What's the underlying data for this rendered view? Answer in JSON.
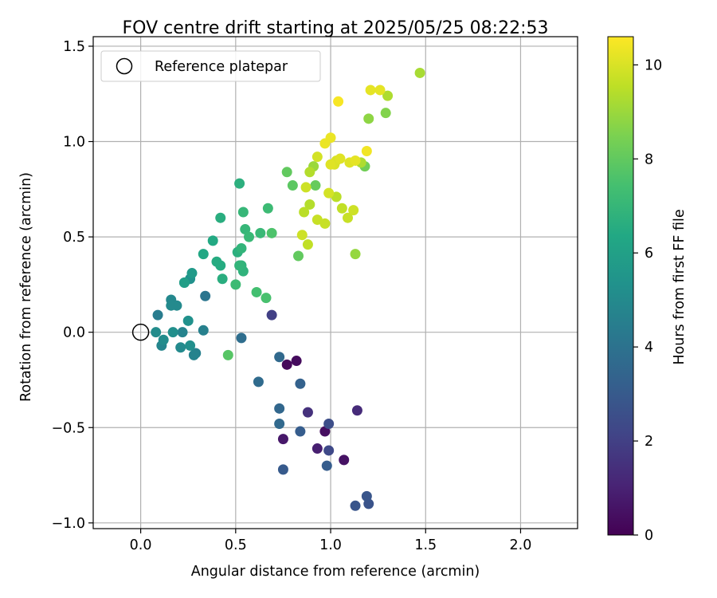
{
  "chart_data": {
    "type": "scatter",
    "title": "FOV centre drift starting at 2025/05/25 08:22:53",
    "xlabel": "Angular distance from reference (arcmin)",
    "ylabel": "Rotation from reference (arcmin)",
    "xlim": [
      -0.25,
      2.3
    ],
    "ylim": [
      -1.03,
      1.55
    ],
    "xticks": [
      0.0,
      0.5,
      1.0,
      1.5,
      2.0
    ],
    "xtick_labels": [
      "0.0",
      "0.5",
      "1.0",
      "1.5",
      "2.0"
    ],
    "yticks": [
      -1.0,
      -0.5,
      0.0,
      0.5,
      1.0,
      1.5
    ],
    "ytick_labels": [
      "−1.0",
      "−0.5",
      "0.0",
      "0.5",
      "1.0",
      "1.5"
    ],
    "grid": true,
    "legend": {
      "placement": "upper-left",
      "entries": [
        "Reference platepar"
      ]
    },
    "reference_point": {
      "x": 0.0,
      "y": 0.0
    },
    "colorbar": {
      "label": "Hours from first FF file",
      "colormap": "viridis",
      "range": [
        0,
        10.6
      ],
      "ticks": [
        0,
        2,
        4,
        6,
        8,
        10
      ],
      "tick_labels": [
        "0",
        "2",
        "4",
        "6",
        "8",
        "10"
      ]
    },
    "points": [
      {
        "x": 0.77,
        "y": -0.17,
        "h": 0.2
      },
      {
        "x": 0.82,
        "y": -0.15,
        "h": 0.3
      },
      {
        "x": 0.97,
        "y": -0.52,
        "h": 0.4
      },
      {
        "x": 1.07,
        "y": -0.67,
        "h": 0.5
      },
      {
        "x": 0.75,
        "y": -0.56,
        "h": 0.7
      },
      {
        "x": 0.93,
        "y": -0.61,
        "h": 0.9
      },
      {
        "x": 1.14,
        "y": -0.41,
        "h": 1.3
      },
      {
        "x": 0.88,
        "y": -0.42,
        "h": 1.5
      },
      {
        "x": 0.69,
        "y": 0.09,
        "h": 2.0
      },
      {
        "x": 0.99,
        "y": -0.62,
        "h": 2.3
      },
      {
        "x": 0.99,
        "y": -0.48,
        "h": 2.5
      },
      {
        "x": 1.2,
        "y": -0.9,
        "h": 2.7
      },
      {
        "x": 1.13,
        "y": -0.91,
        "h": 2.8
      },
      {
        "x": 1.19,
        "y": -0.86,
        "h": 2.8
      },
      {
        "x": 0.75,
        "y": -0.72,
        "h": 3.0
      },
      {
        "x": 0.84,
        "y": -0.52,
        "h": 3.1
      },
      {
        "x": 0.98,
        "y": -0.7,
        "h": 3.1
      },
      {
        "x": 0.84,
        "y": -0.27,
        "h": 3.3
      },
      {
        "x": 0.73,
        "y": -0.4,
        "h": 3.5
      },
      {
        "x": 0.73,
        "y": -0.48,
        "h": 3.6
      },
      {
        "x": 0.73,
        "y": -0.13,
        "h": 3.6
      },
      {
        "x": 0.62,
        "y": -0.26,
        "h": 3.7
      },
      {
        "x": 0.53,
        "y": -0.03,
        "h": 3.8
      },
      {
        "x": 0.34,
        "y": 0.19,
        "h": 4.1
      },
      {
        "x": 0.09,
        "y": 0.09,
        "h": 4.4
      },
      {
        "x": 0.33,
        "y": 0.01,
        "h": 4.6
      },
      {
        "x": 0.29,
        "y": -0.11,
        "h": 4.6
      },
      {
        "x": 0.28,
        "y": -0.12,
        "h": 4.7
      },
      {
        "x": 0.22,
        "y": 0.0,
        "h": 4.7
      },
      {
        "x": 0.11,
        "y": -0.07,
        "h": 4.8
      },
      {
        "x": 0.16,
        "y": 0.17,
        "h": 4.9
      },
      {
        "x": 0.19,
        "y": 0.14,
        "h": 5.0
      },
      {
        "x": 0.21,
        "y": -0.08,
        "h": 5.0
      },
      {
        "x": 0.16,
        "y": 0.14,
        "h": 5.0
      },
      {
        "x": 0.08,
        "y": 0.0,
        "h": 5.1
      },
      {
        "x": 0.12,
        "y": -0.04,
        "h": 5.1
      },
      {
        "x": 0.17,
        "y": 0.0,
        "h": 5.2
      },
      {
        "x": 0.26,
        "y": -0.07,
        "h": 5.2
      },
      {
        "x": 0.25,
        "y": 0.06,
        "h": 5.3
      },
      {
        "x": 0.26,
        "y": 0.28,
        "h": 5.3
      },
      {
        "x": 0.23,
        "y": 0.26,
        "h": 5.5
      },
      {
        "x": 0.27,
        "y": 0.31,
        "h": 5.7
      },
      {
        "x": 0.23,
        "y": 0.26,
        "h": 5.9
      },
      {
        "x": 0.33,
        "y": 0.41,
        "h": 6.3
      },
      {
        "x": 0.38,
        "y": 0.48,
        "h": 6.4
      },
      {
        "x": 0.42,
        "y": 0.35,
        "h": 6.5
      },
      {
        "x": 0.4,
        "y": 0.37,
        "h": 6.5
      },
      {
        "x": 0.43,
        "y": 0.28,
        "h": 6.6
      },
      {
        "x": 0.42,
        "y": 0.6,
        "h": 6.6
      },
      {
        "x": 0.52,
        "y": 0.78,
        "h": 6.7
      },
      {
        "x": 0.51,
        "y": 0.42,
        "h": 6.7
      },
      {
        "x": 0.53,
        "y": 0.35,
        "h": 6.8
      },
      {
        "x": 0.54,
        "y": 0.32,
        "h": 6.8
      },
      {
        "x": 0.52,
        "y": 0.35,
        "h": 6.9
      },
      {
        "x": 0.53,
        "y": 0.44,
        "h": 6.9
      },
      {
        "x": 0.54,
        "y": 0.63,
        "h": 7.0
      },
      {
        "x": 0.55,
        "y": 0.54,
        "h": 7.0
      },
      {
        "x": 0.57,
        "y": 0.5,
        "h": 7.1
      },
      {
        "x": 0.63,
        "y": 0.52,
        "h": 7.1
      },
      {
        "x": 0.5,
        "y": 0.25,
        "h": 7.2
      },
      {
        "x": 0.67,
        "y": 0.65,
        "h": 7.2
      },
      {
        "x": 0.61,
        "y": 0.21,
        "h": 7.4
      },
      {
        "x": 0.66,
        "y": 0.18,
        "h": 7.5
      },
      {
        "x": 0.69,
        "y": 0.52,
        "h": 7.6
      },
      {
        "x": 0.46,
        "y": -0.12,
        "h": 7.8
      },
      {
        "x": 0.8,
        "y": 0.77,
        "h": 7.9
      },
      {
        "x": 0.77,
        "y": 0.84,
        "h": 8.0
      },
      {
        "x": 0.83,
        "y": 0.4,
        "h": 8.0
      },
      {
        "x": 0.92,
        "y": 0.77,
        "h": 8.1
      },
      {
        "x": 1.18,
        "y": 0.87,
        "h": 8.3
      },
      {
        "x": 1.29,
        "y": 1.15,
        "h": 8.6
      },
      {
        "x": 1.2,
        "y": 1.12,
        "h": 8.8
      },
      {
        "x": 1.13,
        "y": 0.41,
        "h": 8.9
      },
      {
        "x": 0.91,
        "y": 0.87,
        "h": 9.0
      },
      {
        "x": 1.47,
        "y": 1.36,
        "h": 9.2
      },
      {
        "x": 1.3,
        "y": 1.24,
        "h": 9.3
      },
      {
        "x": 1.16,
        "y": 0.89,
        "h": 9.3
      },
      {
        "x": 0.89,
        "y": 0.84,
        "h": 9.4
      },
      {
        "x": 0.89,
        "y": 0.67,
        "h": 9.4
      },
      {
        "x": 1.03,
        "y": 0.71,
        "h": 9.5
      },
      {
        "x": 0.86,
        "y": 0.63,
        "h": 9.5
      },
      {
        "x": 1.06,
        "y": 0.65,
        "h": 9.6
      },
      {
        "x": 0.88,
        "y": 0.46,
        "h": 9.6
      },
      {
        "x": 0.93,
        "y": 0.59,
        "h": 9.7
      },
      {
        "x": 0.97,
        "y": 0.57,
        "h": 9.7
      },
      {
        "x": 1.09,
        "y": 0.6,
        "h": 9.7
      },
      {
        "x": 1.12,
        "y": 0.64,
        "h": 9.8
      },
      {
        "x": 0.85,
        "y": 0.51,
        "h": 9.8
      },
      {
        "x": 0.87,
        "y": 0.76,
        "h": 9.8
      },
      {
        "x": 0.93,
        "y": 0.92,
        "h": 9.9
      },
      {
        "x": 0.99,
        "y": 0.73,
        "h": 9.9
      },
      {
        "x": 1.02,
        "y": 0.88,
        "h": 10.0
      },
      {
        "x": 1.03,
        "y": 0.9,
        "h": 10.0
      },
      {
        "x": 1.05,
        "y": 0.91,
        "h": 10.1
      },
      {
        "x": 1.0,
        "y": 0.88,
        "h": 10.1
      },
      {
        "x": 1.1,
        "y": 0.89,
        "h": 10.1
      },
      {
        "x": 1.13,
        "y": 0.9,
        "h": 10.2
      },
      {
        "x": 1.21,
        "y": 1.27,
        "h": 10.2
      },
      {
        "x": 1.26,
        "y": 1.27,
        "h": 10.2
      },
      {
        "x": 1.0,
        "y": 1.02,
        "h": 10.3
      },
      {
        "x": 0.97,
        "y": 0.99,
        "h": 10.3
      },
      {
        "x": 1.19,
        "y": 0.95,
        "h": 10.4
      },
      {
        "x": 1.04,
        "y": 1.21,
        "h": 10.5
      }
    ]
  }
}
